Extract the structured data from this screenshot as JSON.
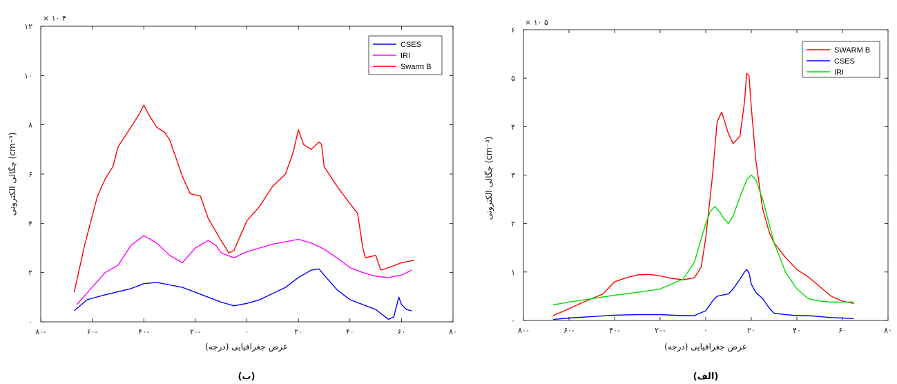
{
  "chart_data": [
    {
      "id": "b",
      "type": "line",
      "caption": "(ب)",
      "exponent": "× ۱۰ ۴",
      "xlabel": "عرض جغرافیایی (درجه)",
      "ylabel": "چگالی الکترونی (cm⁻³)",
      "xlim": [
        -80,
        80
      ],
      "ylim": [
        0,
        120000
      ],
      "xticks": [
        -80,
        -60,
        -40,
        -20,
        0,
        20,
        40,
        60,
        80
      ],
      "xtick_labels": [
        "۸۰-",
        "۶۰-",
        "۴۰-",
        "۲۰-",
        "۰",
        "۲۰",
        "۴۰",
        "۶۰",
        "۸۰"
      ],
      "yticks": [
        0,
        20000,
        40000,
        60000,
        80000,
        100000,
        120000
      ],
      "ytick_labels": [
        "۰",
        "۲",
        "۴",
        "۶",
        "۸",
        "۱۰",
        "۱۲"
      ],
      "legend_position": "top-right",
      "series": [
        {
          "name": "CSES",
          "color": "#0000ff",
          "x": [
            -67,
            -62,
            -55,
            -45,
            -40,
            -35,
            -30,
            -25,
            -20,
            -15,
            -10,
            -5,
            0,
            5,
            10,
            15,
            20,
            25,
            28,
            30,
            35,
            40,
            45,
            50,
            55,
            57,
            59,
            60,
            62,
            64
          ],
          "y": [
            4500,
            9000,
            11000,
            13500,
            15500,
            16000,
            15000,
            14000,
            12000,
            10000,
            8000,
            6500,
            7500,
            9000,
            11500,
            14000,
            18000,
            21000,
            21500,
            19000,
            13000,
            9000,
            7000,
            5000,
            1000,
            2000,
            10000,
            7000,
            5000,
            4500
          ]
        },
        {
          "name": "IRI",
          "color": "#ff00ff",
          "x": [
            -66,
            -55,
            -50,
            -45,
            -40,
            -35,
            -30,
            -25,
            -20,
            -15,
            -12,
            -10,
            -5,
            0,
            5,
            10,
            15,
            20,
            25,
            30,
            35,
            40,
            45,
            50,
            55,
            60,
            64
          ],
          "y": [
            7000,
            20000,
            23000,
            31000,
            35000,
            32000,
            27000,
            24000,
            30000,
            33000,
            31000,
            28000,
            26000,
            28500,
            30000,
            31500,
            32500,
            33500,
            32000,
            29500,
            26000,
            22000,
            20000,
            18500,
            18000,
            19000,
            21000
          ]
        },
        {
          "name": "Swarm B",
          "color": "#ff0000",
          "x": [
            -67,
            -63,
            -58,
            -55,
            -52,
            -50,
            -45,
            -42,
            -40,
            -38,
            -35,
            -32,
            -30,
            -25,
            -22,
            -18,
            -15,
            -10,
            -7,
            -5,
            0,
            5,
            10,
            15,
            18,
            20,
            22,
            25,
            28,
            29,
            30,
            35,
            40,
            43,
            45,
            46,
            50,
            52,
            55,
            60,
            65
          ],
          "y": [
            12000,
            31000,
            51000,
            58000,
            63000,
            71000,
            79000,
            84000,
            88000,
            84000,
            79000,
            77000,
            74000,
            59000,
            52000,
            51000,
            42000,
            33000,
            28000,
            29000,
            41000,
            47000,
            55000,
            60000,
            69000,
            78000,
            72000,
            70000,
            73000,
            72000,
            63000,
            55000,
            48000,
            44000,
            30000,
            26000,
            27000,
            21000,
            22000,
            24000,
            25000
          ]
        }
      ]
    },
    {
      "id": "alef",
      "type": "line",
      "caption": "(الف)",
      "exponent": "× ۱۰ ۵",
      "xlabel": "عرض جغرافیایی (درجه)",
      "ylabel": "چگالی الکترونی (cm⁻³)",
      "xlim": [
        -80,
        80
      ],
      "ylim": [
        0,
        600000
      ],
      "xticks": [
        -80,
        -60,
        -40,
        -20,
        0,
        20,
        40,
        60,
        80
      ],
      "xtick_labels": [
        "۸۰-",
        "۶۰-",
        "۴۰-",
        "۲۰-",
        "۰",
        "۲۰",
        "۴۰",
        "۶۰",
        "۸۰"
      ],
      "yticks": [
        0,
        100000,
        200000,
        300000,
        400000,
        500000,
        600000
      ],
      "ytick_labels": [
        "۰",
        "۱",
        "۲",
        "۳",
        "۴",
        "۵",
        "۶"
      ],
      "legend_position": "top-right",
      "series": [
        {
          "name": "SWARM B",
          "color": "#ff0000",
          "x": [
            -67,
            -62,
            -55,
            -45,
            -40,
            -35,
            -30,
            -25,
            -20,
            -15,
            -10,
            -5,
            -2,
            0,
            3,
            5,
            7,
            10,
            12,
            15,
            17,
            18,
            19,
            20,
            22,
            25,
            28,
            30,
            35,
            40,
            45,
            50,
            55,
            60,
            65
          ],
          "y": [
            10000,
            20000,
            35000,
            55000,
            80000,
            88000,
            94000,
            95000,
            92000,
            87000,
            84000,
            88000,
            110000,
            170000,
            300000,
            410000,
            430000,
            385000,
            365000,
            380000,
            450000,
            510000,
            505000,
            440000,
            330000,
            230000,
            180000,
            160000,
            130000,
            105000,
            90000,
            70000,
            50000,
            40000,
            35000
          ]
        },
        {
          "name": "CSES",
          "color": "#0000ff",
          "x": [
            -67,
            -60,
            -50,
            -40,
            -30,
            -20,
            -10,
            -5,
            0,
            3,
            5,
            10,
            12,
            15,
            17,
            18,
            19,
            20,
            22,
            25,
            28,
            30,
            35,
            40,
            45,
            50,
            55,
            60,
            65
          ],
          "y": [
            2000,
            5000,
            8000,
            11000,
            12000,
            12000,
            10000,
            10000,
            20000,
            40000,
            50000,
            55000,
            65000,
            85000,
            100000,
            105000,
            98000,
            75000,
            58000,
            45000,
            25000,
            15000,
            12000,
            10000,
            10000,
            8000,
            6000,
            5000,
            4000
          ]
        },
        {
          "name": "IRI",
          "color": "#00dd00",
          "x": [
            -67,
            -60,
            -50,
            -40,
            -30,
            -20,
            -10,
            -5,
            0,
            2,
            4,
            6,
            8,
            10,
            12,
            15,
            18,
            20,
            22,
            25,
            30,
            35,
            40,
            45,
            50,
            55,
            60,
            65
          ],
          "y": [
            32000,
            38000,
            45000,
            52000,
            58000,
            65000,
            85000,
            120000,
            200000,
            225000,
            235000,
            225000,
            210000,
            200000,
            215000,
            255000,
            290000,
            300000,
            290000,
            250000,
            160000,
            100000,
            65000,
            45000,
            40000,
            38000,
            38000,
            38000
          ]
        }
      ]
    }
  ]
}
